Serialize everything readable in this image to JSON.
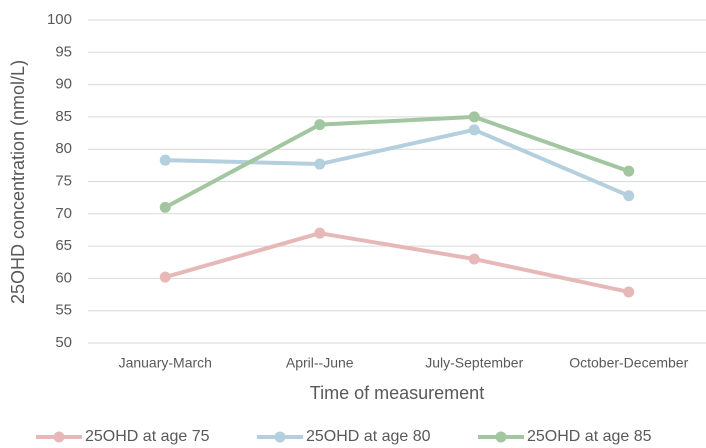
{
  "chart_data": {
    "type": "line",
    "x_label": "Time of measurement",
    "y_label": "25OHD concentration (nmol/L)",
    "categories": [
      "January-March",
      "April--June",
      "July-September",
      "October-December"
    ],
    "series": [
      {
        "name": "25OHD at age 75",
        "color": "#e6b9b8",
        "values": [
          60.2,
          67,
          63,
          57.9
        ]
      },
      {
        "name": "25OHD at age 80",
        "color": "#b4cfdd",
        "values": [
          78.3,
          77.7,
          83,
          72.8
        ]
      },
      {
        "name": "25OHD at age 85",
        "color": "#a2c6a0",
        "values": [
          71,
          83.8,
          85,
          76.6
        ]
      }
    ],
    "ylim": [
      50,
      100
    ],
    "yticks": [
      50,
      55,
      60,
      65,
      70,
      75,
      80,
      85,
      90,
      95,
      100
    ],
    "grid": true,
    "legend": "bottom"
  }
}
